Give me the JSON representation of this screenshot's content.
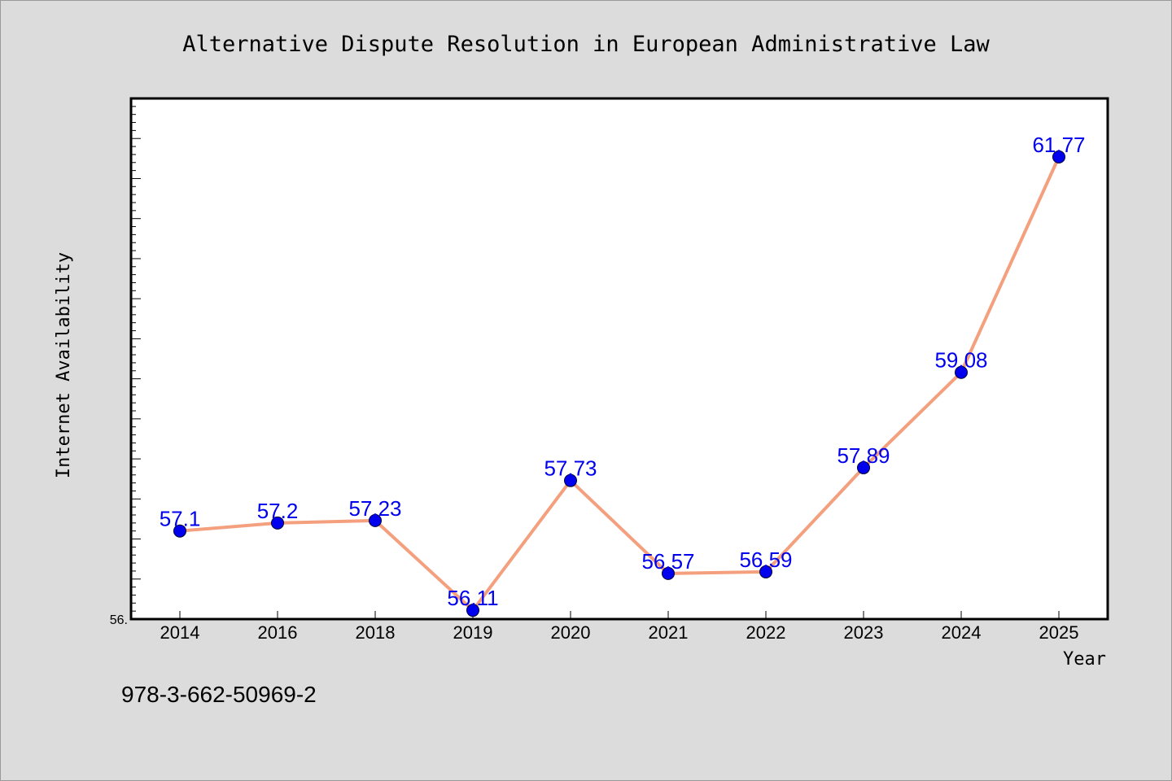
{
  "chart_data": {
    "type": "line",
    "title": "Alternative Dispute Resolution in European Administrative Law",
    "xlabel": "Year",
    "ylabel": "Internet Availability",
    "categories": [
      "2014",
      "2016",
      "2018",
      "2019",
      "2020",
      "2021",
      "2022",
      "2023",
      "2024",
      "2025"
    ],
    "series": [
      {
        "values": [
          57.1,
          57.2,
          57.23,
          56.11,
          57.73,
          56.57,
          56.59,
          57.89,
          59.08,
          61.77
        ],
        "data_labels": [
          "57.1",
          "57.2",
          "57.23",
          "56.11",
          "57.73",
          "56.57",
          "56.59",
          "57.89",
          "59.08",
          "61.77"
        ],
        "line_color": "#f4a07e",
        "marker_color": "#0000ee"
      }
    ],
    "ylim": [
      56.0,
      62.5
    ],
    "ytick_labels": [
      "56."
    ],
    "grid": false,
    "legend": "none",
    "frame_background": "#ffffff",
    "page_background": "#dcdcdc"
  },
  "footnote": "978-3-662-50969-2"
}
